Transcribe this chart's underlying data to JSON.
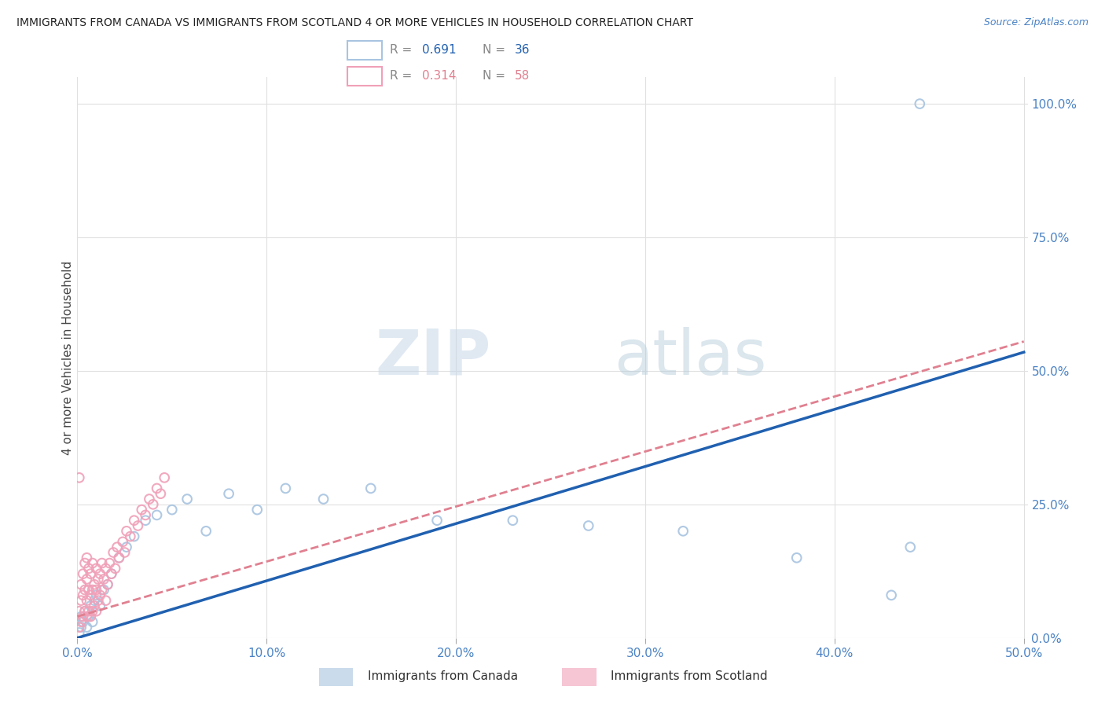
{
  "title": "IMMIGRANTS FROM CANADA VS IMMIGRANTS FROM SCOTLAND 4 OR MORE VEHICLES IN HOUSEHOLD CORRELATION CHART",
  "source": "Source: ZipAtlas.com",
  "ylabel": "4 or more Vehicles in Household",
  "canada_R": 0.691,
  "canada_N": 36,
  "scotland_R": 0.314,
  "scotland_N": 58,
  "canada_color": "#a8c4e0",
  "scotland_color": "#f0a0b8",
  "canada_line_color": "#2060b0",
  "scotland_line_color": "#e08090",
  "background_color": "#ffffff",
  "grid_color": "#e0e0e0",
  "watermark_zip": "ZIP",
  "watermark_atlas": "atlas",
  "legend_label_canada": "Immigrants from Canada",
  "legend_label_scotland": "Immigrants from Scotland",
  "canada_x": [
    0.001,
    0.002,
    0.002,
    0.003,
    0.004,
    0.005,
    0.006,
    0.007,
    0.008,
    0.009,
    0.01,
    0.012,
    0.014,
    0.016,
    0.018,
    0.022,
    0.026,
    0.03,
    0.036,
    0.042,
    0.05,
    0.058,
    0.068,
    0.08,
    0.095,
    0.11,
    0.13,
    0.155,
    0.19,
    0.23,
    0.27,
    0.32,
    0.38,
    0.43,
    0.44,
    0.445
  ],
  "canada_y": [
    0.01,
    0.02,
    0.04,
    0.03,
    0.05,
    0.02,
    0.04,
    0.06,
    0.03,
    0.07,
    0.08,
    0.06,
    0.09,
    0.1,
    0.12,
    0.15,
    0.17,
    0.19,
    0.22,
    0.23,
    0.24,
    0.26,
    0.2,
    0.27,
    0.24,
    0.28,
    0.26,
    0.28,
    0.22,
    0.22,
    0.21,
    0.2,
    0.15,
    0.08,
    0.17,
    1.0
  ],
  "scotland_x": [
    0.001,
    0.001,
    0.002,
    0.002,
    0.002,
    0.003,
    0.003,
    0.003,
    0.004,
    0.004,
    0.004,
    0.005,
    0.005,
    0.005,
    0.005,
    0.006,
    0.006,
    0.006,
    0.007,
    0.007,
    0.007,
    0.008,
    0.008,
    0.008,
    0.009,
    0.009,
    0.01,
    0.01,
    0.01,
    0.011,
    0.011,
    0.012,
    0.012,
    0.013,
    0.013,
    0.014,
    0.015,
    0.015,
    0.016,
    0.017,
    0.018,
    0.019,
    0.02,
    0.021,
    0.022,
    0.024,
    0.025,
    0.026,
    0.028,
    0.03,
    0.032,
    0.034,
    0.036,
    0.038,
    0.04,
    0.042,
    0.044,
    0.046
  ],
  "scotland_y": [
    0.02,
    0.05,
    0.03,
    0.07,
    0.1,
    0.04,
    0.08,
    0.12,
    0.05,
    0.09,
    0.14,
    0.04,
    0.07,
    0.11,
    0.15,
    0.05,
    0.09,
    0.13,
    0.04,
    0.08,
    0.12,
    0.05,
    0.09,
    0.14,
    0.06,
    0.1,
    0.05,
    0.09,
    0.13,
    0.07,
    0.11,
    0.08,
    0.12,
    0.09,
    0.14,
    0.11,
    0.07,
    0.13,
    0.1,
    0.14,
    0.12,
    0.16,
    0.13,
    0.17,
    0.15,
    0.18,
    0.16,
    0.2,
    0.19,
    0.22,
    0.21,
    0.24,
    0.23,
    0.26,
    0.25,
    0.28,
    0.27,
    0.3
  ],
  "scotland_outlier_x": [
    0.001
  ],
  "scotland_outlier_y": [
    0.3
  ],
  "canada_line_x": [
    0.0,
    0.5
  ],
  "canada_line_y": [
    0.0,
    0.535
  ],
  "scotland_line_x": [
    0.0,
    0.5
  ],
  "scotland_line_y": [
    0.04,
    0.555
  ],
  "xlim": [
    0.0,
    0.502
  ],
  "ylim": [
    0.0,
    1.05
  ],
  "x_ticks": [
    0.0,
    0.1,
    0.2,
    0.3,
    0.4,
    0.5
  ],
  "y_ticks": [
    0.0,
    0.25,
    0.5,
    0.75,
    1.0
  ]
}
